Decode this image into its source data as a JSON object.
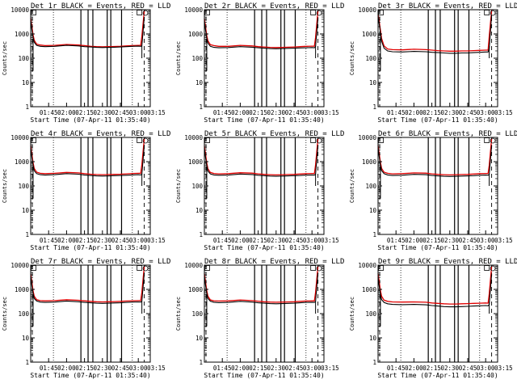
{
  "page": {
    "title_template": "{det}r BLACK = Events, RED = LLD"
  },
  "chart_data": {
    "type": "line",
    "y_scale": "log",
    "ylim": [
      1,
      10000
    ],
    "y_ticks": [
      1,
      10,
      100,
      1000,
      10000
    ],
    "y_tick_labels": [
      "1",
      "10",
      "100",
      "1000",
      "10000"
    ],
    "x_range_minutes": [
      0,
      100
    ],
    "x_ticks": [
      15,
      30,
      45,
      60,
      75,
      90,
      105
    ],
    "x_tick_labels": [
      "01:45",
      "02:00",
      "02:15",
      "02:30",
      "02:45",
      "03:00",
      "03:15"
    ],
    "ylabel": "Counts/sec",
    "xlabel": "Start Time (07-Apr-11 01:35:40)",
    "legend": "BLACK = Events, RED = LLD",
    "series_names": [
      "Events",
      "LLD"
    ],
    "series_colors": [
      "#000000",
      "#e00000"
    ],
    "x_minutes": [
      0,
      1,
      2,
      3,
      5,
      8,
      12,
      20,
      30,
      40,
      45,
      50,
      55,
      60,
      65,
      70,
      75,
      80,
      85,
      90,
      92,
      93,
      95
    ],
    "vertical_markers": {
      "dotted": [
        19,
        85
      ],
      "solid": [
        42,
        48,
        52,
        64,
        67,
        76
      ],
      "dashed": [
        0,
        95
      ]
    },
    "panels": [
      {
        "title": "Det 1r BLACK = Events, RED = LLD",
        "events": [
          3500,
          1500,
          700,
          450,
          340,
          310,
          300,
          310,
          340,
          320,
          300,
          290,
          280,
          275,
          280,
          285,
          290,
          300,
          310,
          315,
          310,
          320,
          5000
        ],
        "lld": [
          4500,
          2000,
          900,
          550,
          380,
          350,
          330,
          340,
          370,
          350,
          330,
          310,
          300,
          295,
          300,
          305,
          310,
          320,
          330,
          340,
          340,
          800,
          9000
        ]
      },
      {
        "title": "Det 2r BLACK = Events, RED = LLD",
        "events": [
          3200,
          1400,
          650,
          420,
          310,
          280,
          270,
          275,
          300,
          285,
          270,
          260,
          250,
          245,
          250,
          255,
          260,
          265,
          270,
          275,
          270,
          300,
          4500
        ],
        "lld": [
          4300,
          1900,
          850,
          520,
          360,
          330,
          310,
          310,
          340,
          320,
          300,
          290,
          280,
          275,
          280,
          285,
          290,
          300,
          310,
          315,
          315,
          700,
          9000
        ]
      },
      {
        "title": "Det 3r BLACK = Events, RED = LLD",
        "events": [
          5000,
          2500,
          1000,
          500,
          260,
          200,
          185,
          180,
          190,
          185,
          175,
          170,
          165,
          160,
          160,
          165,
          165,
          170,
          175,
          180,
          180,
          250,
          6000
        ],
        "lld": [
          6500,
          3200,
          1400,
          650,
          320,
          240,
          225,
          220,
          235,
          225,
          215,
          205,
          200,
          195,
          195,
          200,
          200,
          205,
          210,
          215,
          215,
          800,
          9500
        ]
      },
      {
        "title": "Det 4r BLACK = Events, RED = LLD",
        "events": [
          3500,
          1500,
          700,
          420,
          320,
          290,
          280,
          290,
          320,
          305,
          280,
          270,
          260,
          255,
          260,
          265,
          270,
          275,
          285,
          290,
          285,
          300,
          4800
        ],
        "lld": [
          4600,
          2000,
          900,
          520,
          370,
          330,
          320,
          330,
          360,
          345,
          320,
          305,
          295,
          290,
          295,
          300,
          305,
          315,
          325,
          330,
          330,
          750,
          9000
        ]
      },
      {
        "title": "Det 5r BLACK = Events, RED = LLD",
        "events": [
          3400,
          1450,
          680,
          410,
          315,
          285,
          275,
          280,
          310,
          295,
          275,
          265,
          255,
          250,
          255,
          260,
          265,
          270,
          280,
          285,
          280,
          300,
          4700
        ],
        "lld": [
          4500,
          1950,
          880,
          510,
          360,
          325,
          315,
          320,
          350,
          335,
          315,
          300,
          290,
          285,
          290,
          295,
          300,
          310,
          320,
          325,
          325,
          720,
          9000
        ]
      },
      {
        "title": "Det 6r BLACK = Events, RED = LLD",
        "events": [
          3600,
          1550,
          720,
          430,
          320,
          285,
          270,
          275,
          300,
          290,
          270,
          260,
          250,
          245,
          250,
          255,
          260,
          265,
          275,
          280,
          275,
          300,
          4600
        ],
        "lld": [
          4700,
          2050,
          920,
          530,
          370,
          330,
          315,
          320,
          345,
          335,
          315,
          300,
          290,
          285,
          290,
          295,
          300,
          310,
          320,
          325,
          325,
          700,
          9000
        ]
      },
      {
        "title": "Det 7r BLACK = Events, RED = LLD",
        "events": [
          3300,
          1400,
          660,
          420,
          330,
          300,
          290,
          300,
          330,
          310,
          290,
          280,
          270,
          265,
          270,
          275,
          280,
          290,
          300,
          305,
          300,
          320,
          4800
        ],
        "lld": [
          4400,
          1900,
          860,
          520,
          375,
          345,
          335,
          345,
          375,
          355,
          335,
          320,
          310,
          305,
          310,
          315,
          320,
          330,
          340,
          345,
          345,
          760,
          9000
        ]
      },
      {
        "title": "Det 8r BLACK = Events, RED = LLD",
        "events": [
          3400,
          1450,
          680,
          420,
          325,
          295,
          285,
          290,
          320,
          300,
          280,
          270,
          260,
          255,
          260,
          265,
          270,
          280,
          290,
          295,
          290,
          310,
          4700
        ],
        "lld": [
          4500,
          1950,
          880,
          520,
          370,
          340,
          330,
          335,
          365,
          345,
          325,
          310,
          300,
          295,
          300,
          305,
          310,
          320,
          330,
          335,
          335,
          740,
          9000
        ]
      },
      {
        "title": "Det 9r BLACK = Events, RED = LLD",
        "events": [
          3000,
          1300,
          600,
          380,
          290,
          255,
          240,
          235,
          240,
          230,
          215,
          205,
          195,
          190,
          190,
          195,
          200,
          205,
          210,
          215,
          210,
          240,
          4200
        ],
        "lld": [
          4600,
          2000,
          880,
          520,
          360,
          320,
          305,
          300,
          305,
          295,
          275,
          265,
          255,
          250,
          250,
          255,
          260,
          265,
          270,
          275,
          270,
          650,
          9000
        ]
      }
    ]
  }
}
